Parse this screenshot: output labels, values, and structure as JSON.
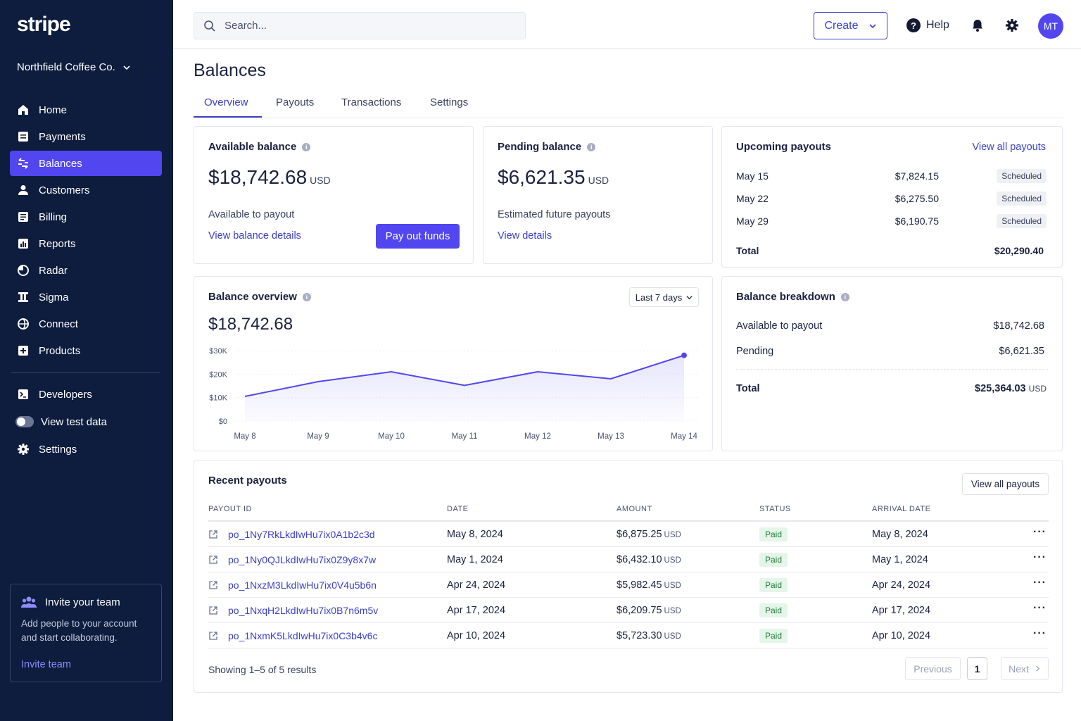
{
  "sidebar": {
    "logo": "stripe",
    "account": "Northfield Coffee Co.",
    "items": [
      {
        "label": "Home",
        "icon": "home-icon"
      },
      {
        "label": "Payments",
        "icon": "payments-icon"
      },
      {
        "label": "Balances",
        "icon": "balances-icon",
        "active": true
      },
      {
        "label": "Customers",
        "icon": "person-icon"
      },
      {
        "label": "Billing",
        "icon": "billing-icon"
      },
      {
        "label": "Reports",
        "icon": "reports-icon"
      },
      {
        "label": "Radar",
        "icon": "radar-icon"
      },
      {
        "label": "Sigma",
        "icon": "sigma-icon"
      },
      {
        "label": "Connect",
        "icon": "globe-icon"
      },
      {
        "label": "Products",
        "icon": "products-icon"
      }
    ],
    "secondary": [
      {
        "label": "Developers",
        "icon": "developers-icon"
      },
      {
        "label": "View test data",
        "icon": "toggle-icon"
      },
      {
        "label": "Settings",
        "icon": "gear-icon"
      }
    ],
    "invite": {
      "title": "Invite your team",
      "text": "Add people to your account and start collaborating.",
      "link": "Invite team"
    }
  },
  "topbar": {
    "search_placeholder": "Search...",
    "create_label": "Create",
    "help_label": "Help",
    "avatar_initials": "MT"
  },
  "page": {
    "title": "Balances",
    "tabs": [
      "Overview",
      "Payouts",
      "Transactions",
      "Settings"
    ],
    "active_tab": "Overview"
  },
  "available": {
    "title": "Available balance",
    "amount": "$18,742.68",
    "currency": "USD",
    "caption": "Available to payout",
    "link": "View balance details",
    "button": "Pay out funds"
  },
  "pending": {
    "title": "Pending balance",
    "amount": "$6,621.35",
    "currency": "USD",
    "caption": "Estimated future payouts",
    "link": "View details"
  },
  "upcoming": {
    "title": "Upcoming payouts",
    "link": "View all payouts",
    "rows": [
      {
        "date": "May 15",
        "amount": "$7,824.15",
        "status": "Scheduled"
      },
      {
        "date": "May 22",
        "amount": "$6,275.50",
        "status": "Scheduled"
      },
      {
        "date": "May 29",
        "amount": "$6,190.75",
        "status": "Scheduled"
      }
    ],
    "total_label": "Total",
    "total_value": "$20,290.40"
  },
  "overview": {
    "title": "Balance overview",
    "amount": "$18,742.68",
    "period": "Last 7 days"
  },
  "chart_data": {
    "type": "area",
    "categories": [
      "May 8",
      "May 9",
      "May 10",
      "May 11",
      "May 12",
      "May 13",
      "May 14"
    ],
    "series": [
      {
        "values": [
          10500,
          16800,
          21000,
          15200,
          21000,
          18000,
          28000
        ]
      }
    ],
    "ylim": [
      0,
      30000
    ],
    "yticks": [
      "$0",
      "$10K",
      "$20K",
      "$30K"
    ],
    "ytick_values": [
      0,
      10000,
      20000,
      30000
    ],
    "color": "#5146f0"
  },
  "breakdown": {
    "title": "Balance breakdown",
    "rows": [
      {
        "label": "Available to payout",
        "value": "$18,742.68"
      },
      {
        "label": "Pending",
        "value": "$6,621.35"
      }
    ],
    "total_label": "Total",
    "total_value": "$25,364.03",
    "total_currency": "USD"
  },
  "recent": {
    "title": "Recent payouts",
    "button": "View all payouts",
    "columns": [
      "PAYOUT ID",
      "DATE",
      "AMOUNT",
      "STATUS",
      "ARRIVAL DATE"
    ],
    "rows": [
      {
        "id": "po_1Ny7RkLkdIwHu7ix0A1b2c3d",
        "date": "May 8, 2024",
        "amount": "$6,875.25",
        "currency": "USD",
        "status": "Paid",
        "arrival": "May 8, 2024"
      },
      {
        "id": "po_1Ny0QJLkdIwHu7ix0Z9y8x7w",
        "date": "May 1, 2024",
        "amount": "$6,432.10",
        "currency": "USD",
        "status": "Paid",
        "arrival": "May 1, 2024"
      },
      {
        "id": "po_1NxzM3LkdIwHu7ix0V4u5b6n",
        "date": "Apr 24, 2024",
        "amount": "$5,982.45",
        "currency": "USD",
        "status": "Paid",
        "arrival": "Apr 24, 2024"
      },
      {
        "id": "po_1NxqH2LkdIwHu7ix0B7n6m5v",
        "date": "Apr 17, 2024",
        "amount": "$6,209.75",
        "currency": "USD",
        "status": "Paid",
        "arrival": "Apr 17, 2024"
      },
      {
        "id": "po_1NxmK5LkdIwHu7ix0C3b4v6c",
        "date": "Apr 10, 2024",
        "amount": "$5,723.30",
        "currency": "USD",
        "status": "Paid",
        "arrival": "Apr 10, 2024"
      }
    ],
    "footer": "Showing 1–5 of 5 results",
    "prev": "Previous",
    "page": "1",
    "next": "Next"
  }
}
